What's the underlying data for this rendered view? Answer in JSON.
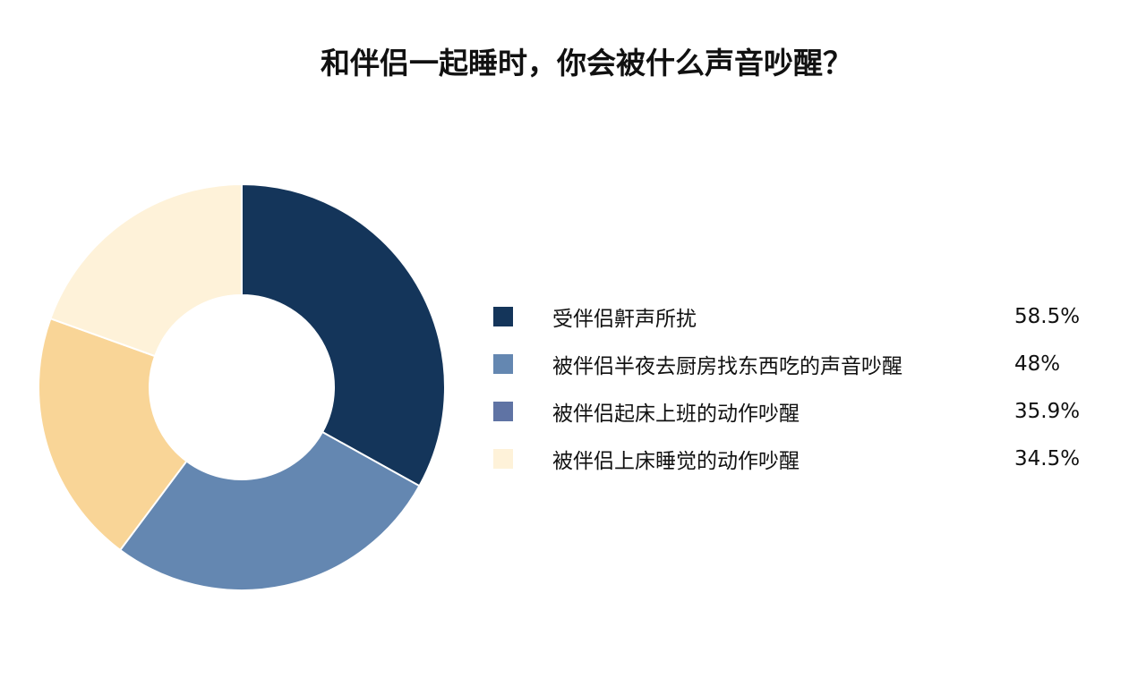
{
  "chart_data": {
    "type": "pie",
    "donut": true,
    "title": "和伴侣一起睡时，你会被什么声音吵醒？",
    "categories": [
      "受伴侣鼾声所扰",
      "被伴侣半夜去厨房找东西吃的声音吵醒",
      "被伴侣起床上班的动作吵醒",
      "被伴侣上床睡觉的动作吵醒"
    ],
    "values": [
      58.5,
      48,
      35.9,
      34.5
    ],
    "value_labels": [
      "58.5%",
      "48%",
      "35.9%",
      "34.5%"
    ],
    "slice_colors": [
      "#14355a",
      "#6487b1",
      "#f9d597",
      "#fef2d9"
    ],
    "legend_colors": [
      "#14355a",
      "#6487b1",
      "#5f73a4",
      "#fef2d9"
    ],
    "legend_placement": "right"
  }
}
